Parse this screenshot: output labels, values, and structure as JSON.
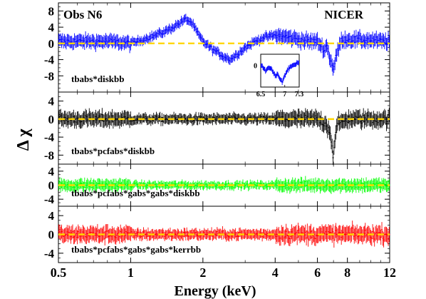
{
  "figure": {
    "obs_label": "Obs N6",
    "instrument_label": "NICER",
    "ylabel": "Δ χ",
    "xlabel": "Energy (keV)",
    "xtick_labels": [
      "0.5",
      "1",
      "2",
      "4",
      "6",
      "8",
      "12"
    ],
    "ref_line_color": "#ffd700"
  },
  "chart_data": [
    {
      "type": "scatter",
      "panel": 1,
      "model_label": "tbabs*diskbb",
      "color": "#0000ff",
      "xscale": "log",
      "xlim": [
        0.5,
        12
      ],
      "ylim": [
        -12,
        10
      ],
      "ytick_labels": [
        "8",
        "4",
        "0",
        "-4",
        "-8"
      ],
      "x": [
        0.5,
        0.8,
        1.0,
        1.2,
        1.4,
        1.6,
        1.7,
        1.8,
        1.9,
        2.0,
        2.2,
        2.4,
        2.6,
        2.8,
        3.0,
        3.3,
        3.6,
        4.0,
        4.5,
        5.0,
        5.5,
        6.0,
        6.4,
        6.6,
        6.7,
        6.9,
        7.0,
        7.3,
        7.6,
        8.0,
        9.0,
        10.0,
        11.0,
        12.0
      ],
      "y": [
        0.5,
        0.5,
        0,
        1.5,
        3.0,
        5.0,
        6.0,
        5.0,
        2.5,
        0.5,
        -1.5,
        -3.0,
        -4.0,
        -2.5,
        -1.0,
        0.5,
        1.5,
        2.0,
        1.5,
        1.0,
        0.5,
        0.5,
        -1.5,
        -0.5,
        -3.0,
        -5.0,
        -6.5,
        -1.5,
        1.0,
        1.0,
        0.8,
        0.8,
        0.5,
        0.5
      ],
      "inset": {
        "xlim": [
          6.5,
          7.3
        ],
        "xtick_labels": [
          "6.5",
          "7",
          "7.3"
        ],
        "ytick_label": "0",
        "x": [
          6.5,
          6.55,
          6.6,
          6.65,
          6.7,
          6.75,
          6.8,
          6.85,
          6.9,
          6.95,
          7.0,
          7.05,
          7.1,
          7.15,
          7.2,
          7.25,
          7.3
        ],
        "y": [
          0,
          -1,
          -2,
          -1,
          -1,
          -2,
          -4,
          -3,
          -5,
          -6,
          -4,
          -2,
          -1,
          0,
          0,
          1,
          1
        ]
      }
    },
    {
      "type": "scatter",
      "panel": 2,
      "model_label": "tbabs*pcfabs*diskbb",
      "color": "#000000",
      "xscale": "log",
      "xlim": [
        0.5,
        12
      ],
      "ylim": [
        -10,
        6
      ],
      "ytick_labels": [
        "4",
        "0",
        "-4",
        "-8"
      ],
      "x": [
        0.5,
        1.0,
        2.0,
        3.0,
        4.0,
        5.0,
        6.0,
        6.5,
        6.8,
        6.9,
        7.0,
        7.1,
        7.3,
        8.0,
        10.0,
        12.0
      ],
      "y": [
        0,
        0,
        0,
        0,
        0,
        0,
        0,
        -1,
        -3,
        -6,
        -8.5,
        -4,
        -1,
        0,
        0,
        0
      ]
    },
    {
      "type": "scatter",
      "panel": 3,
      "model_label": "tbabs*pcfabs*gabs*gabs*diskbb",
      "color": "#00ff00",
      "xscale": "log",
      "xlim": [
        0.5,
        12
      ],
      "ylim": [
        -6,
        6
      ],
      "ytick_labels": [
        "4",
        "0",
        "-4"
      ],
      "x": [
        0.5,
        1.0,
        2.0,
        4.0,
        6.0,
        8.0,
        12.0
      ],
      "y": [
        0,
        0,
        0,
        0,
        0,
        0,
        0
      ]
    },
    {
      "type": "scatter",
      "panel": 4,
      "model_label": "tbabs*pcfabs*gabs*gabs*kerrbb",
      "color": "#ff0000",
      "xscale": "log",
      "xlim": [
        0.5,
        12
      ],
      "ylim": [
        -6,
        6
      ],
      "ytick_labels": [
        "4",
        "0",
        "-4"
      ],
      "x": [
        0.5,
        1.0,
        2.0,
        4.0,
        6.0,
        8.0,
        12.0
      ],
      "y": [
        0,
        0,
        0,
        0,
        0,
        0,
        0
      ]
    }
  ]
}
